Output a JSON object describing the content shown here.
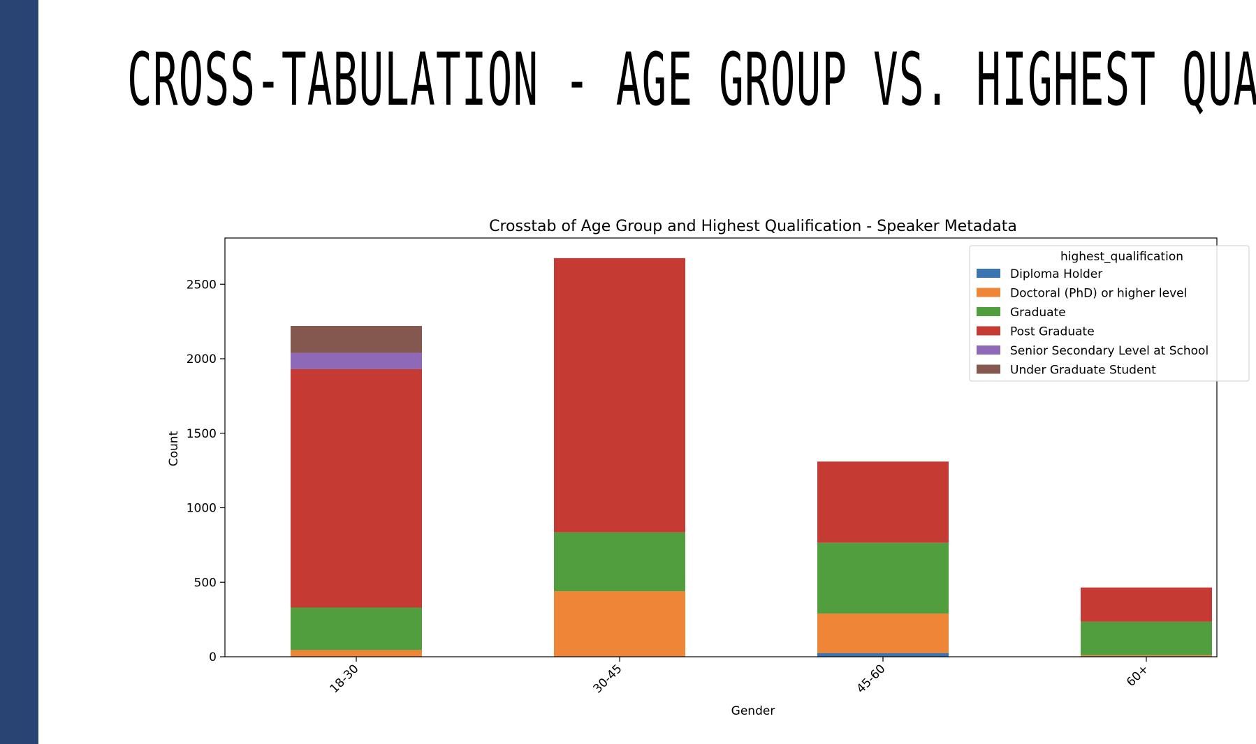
{
  "slide": {
    "title": "CROSS-TABULATION -  AGE GROUP VS. HIGHEST QUA",
    "band_color": "#294472"
  },
  "chart_data": {
    "type": "bar",
    "stacked": true,
    "title": "Crosstab of Age Group and Highest Qualification - Speaker Metadata",
    "xlabel": "Gender",
    "ylabel": "Count",
    "categories": [
      "18-30",
      "30-45",
      "45-60",
      "60+"
    ],
    "ylim": [
      0,
      2800
    ],
    "yticks": [
      0,
      500,
      1000,
      1500,
      2000,
      2500
    ],
    "grid": false,
    "legend": {
      "title": "highest_qualification",
      "position": "top-right"
    },
    "series": [
      {
        "name": "Diploma Holder",
        "color": "#3b75af",
        "values": [
          0,
          0,
          25,
          0
        ]
      },
      {
        "name": "Doctoral (PhD) or higher level",
        "color": "#ef8536",
        "values": [
          45,
          440,
          265,
          10
        ]
      },
      {
        "name": "Graduate",
        "color": "#519e3e",
        "values": [
          285,
          395,
          475,
          225
        ]
      },
      {
        "name": "Post Graduate",
        "color": "#c53a32",
        "values": [
          1600,
          1840,
          545,
          230
        ]
      },
      {
        "name": "Senior Secondary Level at School",
        "color": "#8d69b8",
        "values": [
          110,
          0,
          0,
          0
        ]
      },
      {
        "name": "Under Graduate Student",
        "color": "#84584e",
        "values": [
          180,
          0,
          0,
          0
        ]
      }
    ]
  }
}
